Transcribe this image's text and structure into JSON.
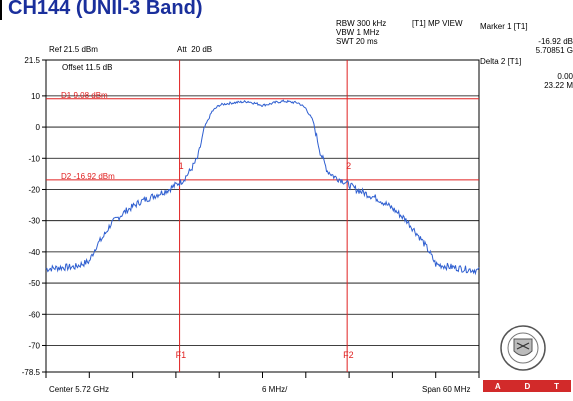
{
  "page_title": "CH144 (UNII-3 Band)",
  "header": {
    "rbw": "RBW 300 kHz",
    "vbw": "VBW 1 MHz",
    "swt": "SWT 20 ms",
    "view": "[T1] MP VIEW",
    "ref": "Ref 21.5 dBm",
    "att": "Att  20 dB",
    "offset": "Offset 11.5 dB"
  },
  "marker_panel": {
    "m1_title": "Marker 1 [T1]",
    "m1_value": "-16.92 dB",
    "m1_freq": "5.70851 G",
    "d2_title": "Delta 2 [T1]",
    "d2_value": "0.00",
    "d2_freq": "23.22 M"
  },
  "logo": {
    "adt_letters": [
      "A",
      "D",
      "T"
    ],
    "brand_color": "#d22a2a"
  },
  "colors": {
    "trace": "#2f5fd0",
    "marker": "#e02020",
    "grid": "#000000"
  },
  "chart_data": {
    "type": "line",
    "title": "",
    "x_axis": {
      "center_label": "Center 5.72 GHz",
      "span_label": "Span 60 MHz",
      "div_label": "6 MHz/",
      "center_mhz": 5720,
      "span_mhz": 60,
      "divisions": 10
    },
    "y_axis": {
      "unit": "dBm",
      "ylim": [
        -78.5,
        21.5
      ],
      "tick_labels": [
        "21.5",
        "10",
        "0",
        "-10",
        "-20",
        "-30",
        "-40",
        "-50",
        "-60",
        "-70",
        "-78.5"
      ],
      "tick_values": [
        21.5,
        10,
        0,
        -10,
        -20,
        -30,
        -40,
        -50,
        -60,
        -70,
        -78.5
      ]
    },
    "display_lines": [
      {
        "label": "D1 9.08 dBm",
        "value": 9.08
      },
      {
        "label": "D2 -16.92 dBm",
        "value": -16.92
      }
    ],
    "freq_lines": [
      {
        "label": "F1",
        "freq_mhz": 5708.51
      },
      {
        "label": "F2",
        "freq_mhz": 5731.73
      }
    ],
    "markers": [
      {
        "label": "1",
        "freq_mhz": 5708.51,
        "level": -16.92
      },
      {
        "label": "2",
        "freq_mhz": 5731.73,
        "level": -16.92
      }
    ],
    "series": [
      {
        "x": [
          5690,
          5692,
          5694,
          5696,
          5697,
          5698,
          5699,
          5700,
          5701,
          5702,
          5703,
          5704,
          5705,
          5706,
          5707,
          5708,
          5709,
          5710,
          5711,
          5712,
          5713,
          5714,
          5715,
          5716,
          5717,
          5718,
          5719,
          5720,
          5721,
          5722,
          5723,
          5724,
          5725,
          5726,
          5727,
          5728,
          5729,
          5730,
          5731,
          5732,
          5733,
          5734,
          5735,
          5736,
          5737,
          5738,
          5739,
          5740,
          5741,
          5742,
          5743,
          5744,
          5746,
          5748,
          5750
        ],
        "values": [
          -45.5,
          -45,
          -44.8,
          -43,
          -38,
          -35,
          -31,
          -29,
          -27,
          -25.5,
          -24,
          -23,
          -22,
          -21,
          -20,
          -18.5,
          -17,
          -14,
          -10,
          0,
          5,
          7,
          7.5,
          7.8,
          8,
          8.2,
          7.6,
          7,
          7.4,
          8,
          8.3,
          8,
          7.7,
          6,
          2,
          -8,
          -14,
          -16,
          -17,
          -18.5,
          -20,
          -21,
          -22,
          -23,
          -24.5,
          -26,
          -28,
          -30,
          -33,
          -36,
          -39.5,
          -44,
          -44.8,
          -45.5,
          -46
        ]
      }
    ]
  }
}
